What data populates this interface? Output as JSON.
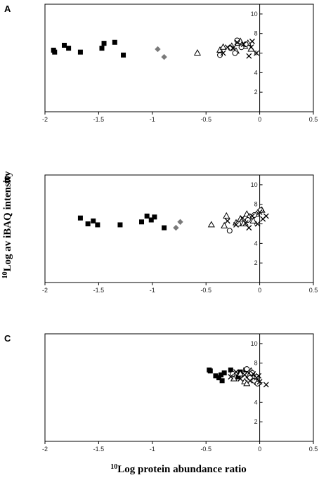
{
  "figure": {
    "ylabel_prefix": "10",
    "ylabel_text": "Log av iBAQ intensity",
    "xlabel_prefix": "10",
    "xlabel_text": "Log protein abundance ratio"
  },
  "colors": {
    "filled": "#000000",
    "grey": "#7a7a7a",
    "open": "#000000"
  },
  "chart_data": [
    {
      "type": "scatter",
      "panel": "A",
      "xlim": [
        -2,
        0.5
      ],
      "ylim": [
        0,
        11
      ],
      "xticks": [
        "-2",
        "-1.5",
        "-1",
        "-0.5",
        "0",
        "0.5"
      ],
      "yticks": [
        "2",
        "4",
        "6",
        "8",
        "10"
      ],
      "grid": false,
      "series": [
        {
          "marker": "square",
          "x": [
            -1.92,
            -1.91,
            -1.82,
            -1.78,
            -1.67,
            -1.47,
            -1.45,
            -1.35,
            -1.27
          ],
          "y": [
            6.3,
            6.1,
            6.8,
            6.5,
            6.1,
            6.5,
            7.0,
            7.1,
            5.8
          ]
        },
        {
          "marker": "diamond",
          "x": [
            -0.95,
            -0.89
          ],
          "y": [
            6.4,
            5.6
          ]
        },
        {
          "marker": "triangle",
          "x": [
            -0.58,
            -0.37,
            -0.34,
            -0.26,
            -0.22,
            -0.2,
            -0.18,
            -0.14,
            -0.11,
            -0.08
          ],
          "y": [
            6.0,
            6.3,
            6.6,
            6.7,
            6.2,
            7.0,
            7.2,
            6.7,
            7.0,
            6.4
          ]
        },
        {
          "marker": "circle",
          "x": [
            -0.37,
            -0.27,
            -0.23,
            -0.21,
            -0.17,
            -0.13
          ],
          "y": [
            5.8,
            6.5,
            6.0,
            7.3,
            6.6,
            6.9
          ]
        },
        {
          "marker": "cross",
          "x": [
            -0.34,
            -0.3,
            -0.25,
            -0.21,
            -0.15,
            -0.1,
            -0.07,
            -0.03,
            -0.08
          ],
          "y": [
            6.0,
            6.6,
            6.5,
            7.1,
            6.9,
            5.7,
            7.2,
            6.0,
            6.6
          ]
        }
      ]
    },
    {
      "type": "scatter",
      "panel": "B",
      "xlim": [
        -2,
        0.5
      ],
      "ylim": [
        0,
        11
      ],
      "xticks": [
        "-2",
        "-1.5",
        "-1",
        "-0.5",
        "0",
        "0.5"
      ],
      "yticks": [
        "2",
        "4",
        "6",
        "8",
        "10"
      ],
      "grid": false,
      "series": [
        {
          "marker": "square",
          "x": [
            -1.67,
            -1.6,
            -1.55,
            -1.51,
            -1.3,
            -1.1,
            -1.05,
            -1.01,
            -0.98,
            -0.89
          ],
          "y": [
            6.6,
            6.0,
            6.3,
            5.9,
            5.9,
            6.2,
            6.8,
            6.4,
            6.7,
            5.6
          ]
        },
        {
          "marker": "diamond",
          "x": [
            -0.78,
            -0.74
          ],
          "y": [
            5.6,
            6.2
          ]
        },
        {
          "marker": "triangle",
          "x": [
            -0.45,
            -0.33,
            -0.31,
            -0.22,
            -0.18,
            -0.12,
            -0.1,
            -0.06,
            -0.03,
            0.02,
            -0.15
          ],
          "y": [
            5.9,
            5.8,
            6.8,
            6.1,
            6.5,
            7.0,
            6.7,
            6.3,
            7.0,
            7.4,
            6.0
          ]
        },
        {
          "marker": "circle",
          "x": [
            -0.28,
            -0.2,
            -0.11,
            -0.05,
            0.01
          ],
          "y": [
            5.3,
            6.0,
            6.4,
            6.9,
            7.4
          ]
        },
        {
          "marker": "cross",
          "x": [
            -0.3,
            -0.22,
            -0.16,
            -0.13,
            -0.07,
            -0.02,
            0.03,
            0.06,
            -0.1,
            0.0
          ],
          "y": [
            6.3,
            5.9,
            6.6,
            6.1,
            6.8,
            6.0,
            6.5,
            6.8,
            5.6,
            7.2
          ]
        }
      ]
    },
    {
      "type": "scatter",
      "panel": "C",
      "xlim": [
        -2,
        0.5
      ],
      "ylim": [
        0,
        11
      ],
      "xticks": [
        "-2",
        "-1.5",
        "-1",
        "-0.5",
        "0",
        "0.5"
      ],
      "yticks": [
        "2",
        "4",
        "6",
        "8",
        "10"
      ],
      "grid": false,
      "series": [
        {
          "marker": "square",
          "x": [
            -0.47,
            -0.46,
            -0.41,
            -0.38,
            -0.36,
            -0.35,
            -0.33,
            -0.27,
            -0.2,
            -0.18,
            -0.13
          ],
          "y": [
            7.3,
            7.2,
            6.7,
            6.5,
            6.8,
            6.2,
            7.0,
            7.3,
            6.6,
            7.1,
            7.3
          ]
        },
        {
          "marker": "triangle",
          "x": [
            -0.24,
            -0.18,
            -0.14,
            -0.1,
            -0.08,
            -0.06,
            -0.04,
            -0.12,
            -0.02
          ],
          "y": [
            6.4,
            6.9,
            6.1,
            6.7,
            7.2,
            6.5,
            6.3,
            5.9,
            6.0
          ]
        },
        {
          "marker": "circle",
          "x": [
            -0.25,
            -0.12,
            -0.09,
            -0.07,
            -0.05,
            -0.03,
            -0.02
          ],
          "y": [
            6.9,
            7.4,
            6.5,
            7.0,
            6.2,
            6.6,
            5.9
          ]
        },
        {
          "marker": "cross",
          "x": [
            -0.27,
            -0.22,
            -0.18,
            -0.14,
            -0.09,
            -0.06,
            -0.03,
            0.0,
            0.06,
            -0.01
          ],
          "y": [
            6.6,
            7.1,
            6.4,
            6.8,
            6.2,
            6.9,
            6.5,
            6.1,
            5.8,
            6.7
          ]
        }
      ]
    }
  ]
}
